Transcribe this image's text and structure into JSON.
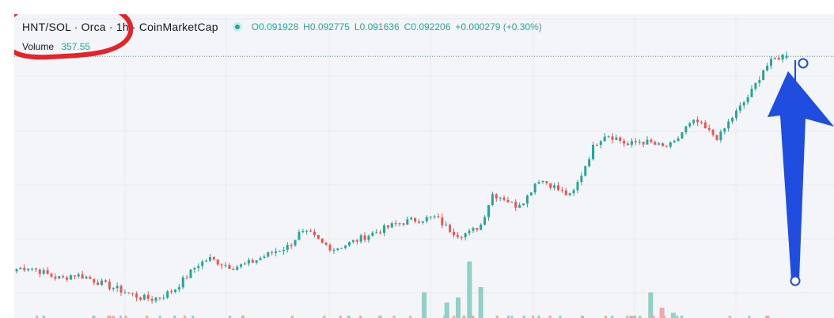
{
  "header": {
    "symbol": "HNT/SOL",
    "separator": "·",
    "exchange": "Orca",
    "interval": "1h",
    "source": "CoinMarketCap",
    "open_label": "O",
    "open": "0.091928",
    "high_label": "H",
    "high": "0.092775",
    "low_label": "L",
    "low": "0.091636",
    "close_label": "C",
    "close": "0.092206",
    "change": "+0.000279 (+0.30%)",
    "volume_label": "Volume",
    "volume": "357.55"
  },
  "colors": {
    "up": "#26a69a",
    "down": "#ef5350",
    "volume_up": "#8fd0c7",
    "volume_down": "#f3a6a4",
    "annotation_circle": "#e4232b",
    "annotation_arrow": "#1f4de0",
    "grid": "#e9ebf0"
  },
  "chart_data": {
    "type": "candlestick",
    "title": "HNT/SOL · Orca · 1h · CoinMarketCap",
    "last": {
      "open": 0.091928,
      "high": 0.092775,
      "low": 0.091636,
      "close": 0.092206
    },
    "trend_close": [
      0.0638,
      0.0641,
      0.0636,
      0.0629,
      0.0625,
      0.0631,
      0.0628,
      0.0622,
      0.0616,
      0.0611,
      0.0605,
      0.06,
      0.0598,
      0.0603,
      0.0612,
      0.0628,
      0.0644,
      0.0652,
      0.0646,
      0.0641,
      0.0643,
      0.0649,
      0.0656,
      0.0663,
      0.0668,
      0.0686,
      0.0684,
      0.0672,
      0.0665,
      0.067,
      0.0676,
      0.0683,
      0.0689,
      0.0695,
      0.07,
      0.0703,
      0.0705,
      0.0707,
      0.0693,
      0.0684,
      0.0686,
      0.0697,
      0.0738,
      0.0733,
      0.0722,
      0.0732,
      0.0758,
      0.0752,
      0.0742,
      0.0734,
      0.0768,
      0.0803,
      0.0818,
      0.0812,
      0.0803,
      0.0808,
      0.0806,
      0.08,
      0.0803,
      0.0825,
      0.0835,
      0.0822,
      0.0812,
      0.0836,
      0.0855,
      0.0876,
      0.0905,
      0.0918,
      0.0924
    ],
    "volume_spikes": [
      {
        "index": 36,
        "value": 5
      },
      {
        "index": 38,
        "value": 3
      },
      {
        "index": 39,
        "value": 4
      },
      {
        "index": 40,
        "value": 11
      },
      {
        "index": 41,
        "value": 6
      },
      {
        "index": 56,
        "value": 5
      },
      {
        "index": 57,
        "value": 2
      },
      {
        "index": 58,
        "value": 1
      }
    ],
    "annotation": "arrow pointing up"
  }
}
